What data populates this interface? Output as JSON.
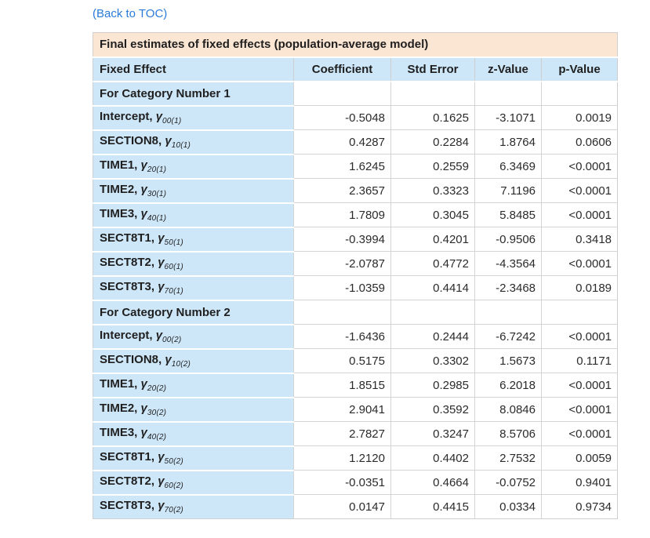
{
  "page": {
    "back_link": "(Back to TOC)"
  },
  "colors": {
    "link_blue": "#2b7bd9",
    "title_bar_peach": "#fbe5d3",
    "header_blue": "#cde6f8",
    "border_gray": "#d4d4d4"
  },
  "table": {
    "title": "Final estimates of fixed effects (population-average model)",
    "gamma_symbol": "γ",
    "columns": [
      "Fixed Effect",
      "Coefficient",
      "Std Error",
      "z-Value",
      "p-Value"
    ],
    "sections": [
      {
        "header": "For Category Number 1",
        "rows": [
          {
            "label": "Intercept,",
            "sub": "00(1)",
            "coefficient": "-0.5048",
            "std_error": "0.1625",
            "z_value": "-3.1071",
            "p_value": "0.0019"
          },
          {
            "label": "SECTION8,",
            "sub": "10(1)",
            "coefficient": "0.4287",
            "std_error": "0.2284",
            "z_value": "1.8764",
            "p_value": "0.0606"
          },
          {
            "label": "TIME1,",
            "sub": "20(1)",
            "coefficient": "1.6245",
            "std_error": "0.2559",
            "z_value": "6.3469",
            "p_value": "<0.0001"
          },
          {
            "label": "TIME2,",
            "sub": "30(1)",
            "coefficient": "2.3657",
            "std_error": "0.3323",
            "z_value": "7.1196",
            "p_value": "<0.0001"
          },
          {
            "label": "TIME3,",
            "sub": "40(1)",
            "coefficient": "1.7809",
            "std_error": "0.3045",
            "z_value": "5.8485",
            "p_value": "<0.0001"
          },
          {
            "label": "SECT8T1,",
            "sub": "50(1)",
            "coefficient": "-0.3994",
            "std_error": "0.4201",
            "z_value": "-0.9506",
            "p_value": "0.3418"
          },
          {
            "label": "SECT8T2,",
            "sub": "60(1)",
            "coefficient": "-2.0787",
            "std_error": "0.4772",
            "z_value": "-4.3564",
            "p_value": "<0.0001"
          },
          {
            "label": "SECT8T3,",
            "sub": "70(1)",
            "coefficient": "-1.0359",
            "std_error": "0.4414",
            "z_value": "-2.3468",
            "p_value": "0.0189"
          }
        ]
      },
      {
        "header": "For Category Number 2",
        "rows": [
          {
            "label": "Intercept,",
            "sub": "00(2)",
            "coefficient": "-1.6436",
            "std_error": "0.2444",
            "z_value": "-6.7242",
            "p_value": "<0.0001"
          },
          {
            "label": "SECTION8,",
            "sub": "10(2)",
            "coefficient": "0.5175",
            "std_error": "0.3302",
            "z_value": "1.5673",
            "p_value": "0.1171"
          },
          {
            "label": "TIME1,",
            "sub": "20(2)",
            "coefficient": "1.8515",
            "std_error": "0.2985",
            "z_value": "6.2018",
            "p_value": "<0.0001"
          },
          {
            "label": "TIME2,",
            "sub": "30(2)",
            "coefficient": "2.9041",
            "std_error": "0.3592",
            "z_value": "8.0846",
            "p_value": "<0.0001"
          },
          {
            "label": "TIME3,",
            "sub": "40(2)",
            "coefficient": "2.7827",
            "std_error": "0.3247",
            "z_value": "8.5706",
            "p_value": "<0.0001"
          },
          {
            "label": "SECT8T1,",
            "sub": "50(2)",
            "coefficient": "1.2120",
            "std_error": "0.4402",
            "z_value": "2.7532",
            "p_value": "0.0059"
          },
          {
            "label": "SECT8T2,",
            "sub": "60(2)",
            "coefficient": "-0.0351",
            "std_error": "0.4664",
            "z_value": "-0.0752",
            "p_value": "0.9401"
          },
          {
            "label": "SECT8T3,",
            "sub": "70(2)",
            "coefficient": "0.0147",
            "std_error": "0.4415",
            "z_value": "0.0334",
            "p_value": "0.9734"
          }
        ]
      }
    ]
  }
}
